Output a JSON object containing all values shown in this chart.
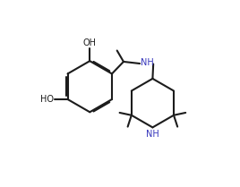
{
  "bg": "#ffffff",
  "lc": "#1c1c1c",
  "tc": "#1c1c1c",
  "bc": "#3535bb",
  "lw": 1.5,
  "fs": 7.0,
  "dbl_off": 0.055,
  "xlim": [
    -0.5,
    7.5
  ],
  "ylim": [
    -0.5,
    7.5
  ]
}
